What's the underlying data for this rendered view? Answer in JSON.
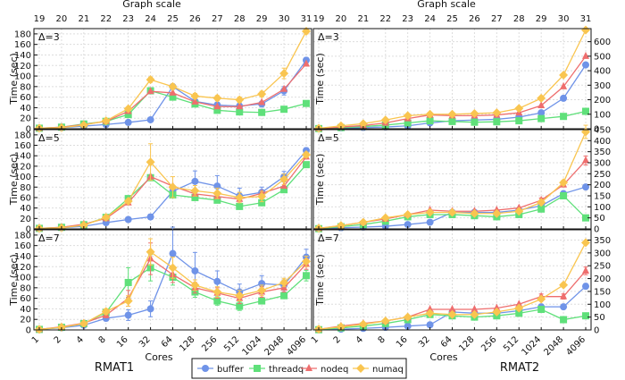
{
  "colors": {
    "buffer": "#6f93e8",
    "threadq": "#5fe07a",
    "nodeq": "#ee6e6e",
    "numaq": "#f9c550"
  },
  "legend": {
    "items": [
      {
        "key": "buffer",
        "label": "buffer",
        "marker": "circle"
      },
      {
        "key": "threadq",
        "label": "threadq",
        "marker": "square"
      },
      {
        "key": "nodeq",
        "label": "nodeq",
        "marker": "triangle"
      },
      {
        "key": "numaq",
        "label": "numaq",
        "marker": "diamond"
      }
    ]
  },
  "chart_data": {
    "type": "line",
    "x_cores": [
      "1",
      "2",
      "4",
      "8",
      "16",
      "32",
      "64",
      "128",
      "256",
      "512",
      "1024",
      "2048",
      "4096"
    ],
    "x_scale": [
      "19",
      "20",
      "21",
      "22",
      "23",
      "24",
      "25",
      "26",
      "27",
      "28",
      "29",
      "30",
      "31"
    ],
    "xlabel_bottom": "Cores",
    "xlabel_top": "Graph scale",
    "ylabel": "Time (sec)",
    "columns": [
      "RMAT1",
      "RMAT2"
    ],
    "panels": [
      {
        "id": "rmat1-d3",
        "label": "Δ=3",
        "ylim": [
          0,
          190
        ],
        "yticks": [
          0,
          20,
          40,
          60,
          80,
          100,
          120,
          140,
          160,
          180
        ],
        "yside": "left",
        "series": {
          "buffer": [
            1,
            2,
            5,
            8,
            12,
            17,
            80,
            52,
            45,
            43,
            47,
            72,
            130
          ],
          "threadq": [
            1,
            3,
            9,
            14,
            27,
            72,
            60,
            47,
            35,
            32,
            31,
            37,
            48
          ],
          "nodeq": [
            1,
            3,
            8,
            14,
            33,
            71,
            68,
            51,
            42,
            42,
            50,
            75,
            123
          ],
          "numaq": [
            1,
            2,
            7,
            15,
            38,
            93,
            80,
            62,
            58,
            55,
            66,
            105,
            185
          ]
        },
        "err": {
          "buffer": [
            0,
            0,
            0,
            0,
            0,
            0,
            5,
            5,
            5,
            5,
            5,
            8,
            5
          ],
          "numaq": [
            0,
            0,
            0,
            0,
            0,
            5,
            5,
            5,
            5,
            5,
            5,
            10,
            5
          ]
        }
      },
      {
        "id": "rmat2-d3",
        "label": "Δ=3",
        "ylim": [
          0,
          690
        ],
        "yticks": [
          0,
          100,
          200,
          300,
          400,
          500,
          600
        ],
        "yside": "right",
        "series": {
          "buffer": [
            1,
            5,
            8,
            12,
            20,
            40,
            55,
            60,
            65,
            80,
            110,
            210,
            440
          ],
          "threadq": [
            1,
            8,
            15,
            25,
            40,
            55,
            50,
            45,
            48,
            55,
            70,
            85,
            120
          ],
          "nodeq": [
            2,
            12,
            22,
            40,
            70,
            95,
            90,
            90,
            95,
            110,
            160,
            290,
            500
          ],
          "numaq": [
            3,
            20,
            35,
            60,
            90,
            100,
            100,
            105,
            110,
            140,
            210,
            370,
            680
          ]
        },
        "err": {}
      },
      {
        "id": "rmat1-d5",
        "label": "Δ=5",
        "ylim": [
          0,
          190
        ],
        "yticks": [
          0,
          20,
          40,
          60,
          80,
          100,
          120,
          140,
          160,
          180
        ],
        "yside": "left",
        "series": {
          "buffer": [
            1,
            2,
            5,
            12,
            18,
            23,
            72,
            91,
            82,
            63,
            70,
            100,
            150
          ],
          "threadq": [
            1,
            3,
            8,
            22,
            58,
            98,
            65,
            60,
            55,
            43,
            50,
            75,
            123
          ],
          "nodeq": [
            1,
            3,
            9,
            20,
            50,
            100,
            82,
            67,
            62,
            57,
            68,
            82,
            138
          ],
          "numaq": [
            1,
            2,
            7,
            22,
            53,
            128,
            80,
            73,
            68,
            60,
            62,
            95,
            142
          ]
        },
        "err": {
          "buffer": [
            0,
            0,
            0,
            0,
            0,
            5,
            10,
            20,
            20,
            15,
            10,
            10,
            5
          ],
          "numaq": [
            0,
            0,
            0,
            0,
            0,
            35,
            20,
            10,
            10,
            10,
            10,
            10,
            5
          ]
        }
      },
      {
        "id": "rmat2-d5",
        "label": "Δ=5",
        "ylim": [
          0,
          450
        ],
        "yticks": [
          0,
          50,
          100,
          150,
          200,
          250,
          300,
          350,
          400,
          450
        ],
        "yside": "right",
        "series": {
          "buffer": [
            1,
            5,
            8,
            12,
            20,
            30,
            75,
            75,
            75,
            85,
            105,
            160,
            190
          ],
          "threadq": [
            1,
            10,
            20,
            35,
            55,
            65,
            65,
            60,
            55,
            65,
            90,
            150,
            50
          ],
          "nodeq": [
            2,
            15,
            30,
            45,
            65,
            85,
            80,
            80,
            85,
            95,
            130,
            200,
            310
          ],
          "numaq": [
            3,
            15,
            30,
            50,
            65,
            75,
            75,
            70,
            70,
            80,
            120,
            210,
            440
          ]
        },
        "err": {
          "numaq": [
            0,
            0,
            0,
            0,
            0,
            0,
            0,
            0,
            0,
            0,
            10,
            10,
            30
          ],
          "nodeq": [
            0,
            0,
            0,
            0,
            0,
            0,
            0,
            0,
            0,
            0,
            10,
            10,
            20
          ]
        }
      },
      {
        "id": "rmat1-d7",
        "label": "Δ=7",
        "ylim": [
          0,
          190
        ],
        "yticks": [
          0,
          20,
          40,
          60,
          80,
          100,
          120,
          140,
          160,
          180
        ],
        "yside": "left",
        "series": {
          "buffer": [
            1,
            4,
            9,
            22,
            28,
            40,
            145,
            112,
            92,
            72,
            88,
            85,
            138
          ],
          "threadq": [
            1,
            5,
            12,
            33,
            90,
            118,
            100,
            72,
            55,
            45,
            55,
            65,
            103
          ],
          "nodeq": [
            1,
            6,
            13,
            28,
            60,
            135,
            105,
            80,
            70,
            60,
            72,
            80,
            125
          ],
          "numaq": [
            1,
            5,
            12,
            35,
            55,
            148,
            118,
            85,
            72,
            65,
            75,
            90,
            130
          ]
        },
        "err": {
          "buffer": [
            0,
            0,
            0,
            5,
            10,
            15,
            50,
            35,
            20,
            15,
            15,
            10,
            15
          ],
          "threadq": [
            0,
            0,
            0,
            5,
            28,
            25,
            15,
            10,
            8,
            8,
            5,
            5,
            10
          ],
          "nodeq": [
            0,
            0,
            0,
            5,
            15,
            30,
            15,
            10,
            10,
            10,
            10,
            8,
            10
          ],
          "numaq": [
            0,
            0,
            0,
            5,
            10,
            25,
            20,
            10,
            10,
            10,
            10,
            8,
            10
          ]
        }
      },
      {
        "id": "rmat2-d7",
        "label": "Δ=7",
        "ylim": [
          0,
          390
        ],
        "yticks": [
          0,
          50,
          100,
          150,
          200,
          250,
          300,
          350
        ],
        "yside": "right",
        "series": {
          "buffer": [
            1,
            3,
            6,
            10,
            15,
            20,
            70,
            65,
            65,
            75,
            90,
            90,
            170
          ],
          "threadq": [
            1,
            8,
            15,
            25,
            40,
            60,
            55,
            50,
            55,
            65,
            80,
            40,
            55
          ],
          "nodeq": [
            2,
            15,
            25,
            35,
            50,
            80,
            80,
            80,
            85,
            100,
            130,
            130,
            230
          ],
          "numaq": [
            3,
            12,
            22,
            35,
            50,
            65,
            60,
            60,
            70,
            85,
            120,
            175,
            340
          ]
        },
        "err": {
          "buffer": [
            0,
            0,
            0,
            0,
            0,
            0,
            0,
            0,
            0,
            0,
            0,
            0,
            10
          ],
          "nodeq": [
            0,
            0,
            0,
            0,
            0,
            0,
            0,
            0,
            0,
            0,
            10,
            10,
            15
          ]
        }
      }
    ]
  }
}
